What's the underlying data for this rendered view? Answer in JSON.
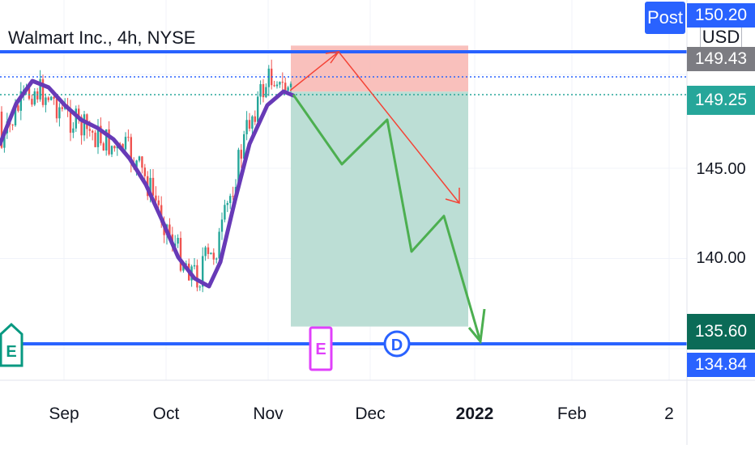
{
  "header": {
    "title": "Walmart Inc., 4h, NYSE",
    "post_label": "Post",
    "currency_label": "USD"
  },
  "price_labels": {
    "top_cut": "150.20",
    "current": "149.43",
    "entry": "149.25",
    "target": "135.60",
    "support": "134.84"
  },
  "chart_data": {
    "type": "line",
    "title": "Walmart Inc., 4h, NYSE",
    "x_tick_labels": [
      "Sep",
      "Oct",
      "Nov",
      "Dec",
      "2022",
      "Feb",
      "2"
    ],
    "y_tick_labels": [
      "145.00",
      "140.00"
    ],
    "ylim": [
      132.5,
      152.1
    ],
    "grid": true,
    "levels": {
      "resistance": 149.9,
      "current_dotted": 149.43,
      "entry_dotted": 149.25,
      "support": 134.84,
      "stop_zone_top": 151.8,
      "target": 135.6
    },
    "events": [
      {
        "label": "E",
        "at": "Aug"
      },
      {
        "label": "E",
        "at": "Nov"
      },
      {
        "label": "D",
        "at": "Dec"
      }
    ],
    "colors": {
      "up": "#26a69a",
      "down": "#ef5350",
      "ma": "#673ab7",
      "level": "#2962ff",
      "projection_green": "#4caf50",
      "projection_red": "#f44336",
      "stop_zone": "#f8b9b5",
      "target_zone": "#b8dcd3"
    }
  }
}
